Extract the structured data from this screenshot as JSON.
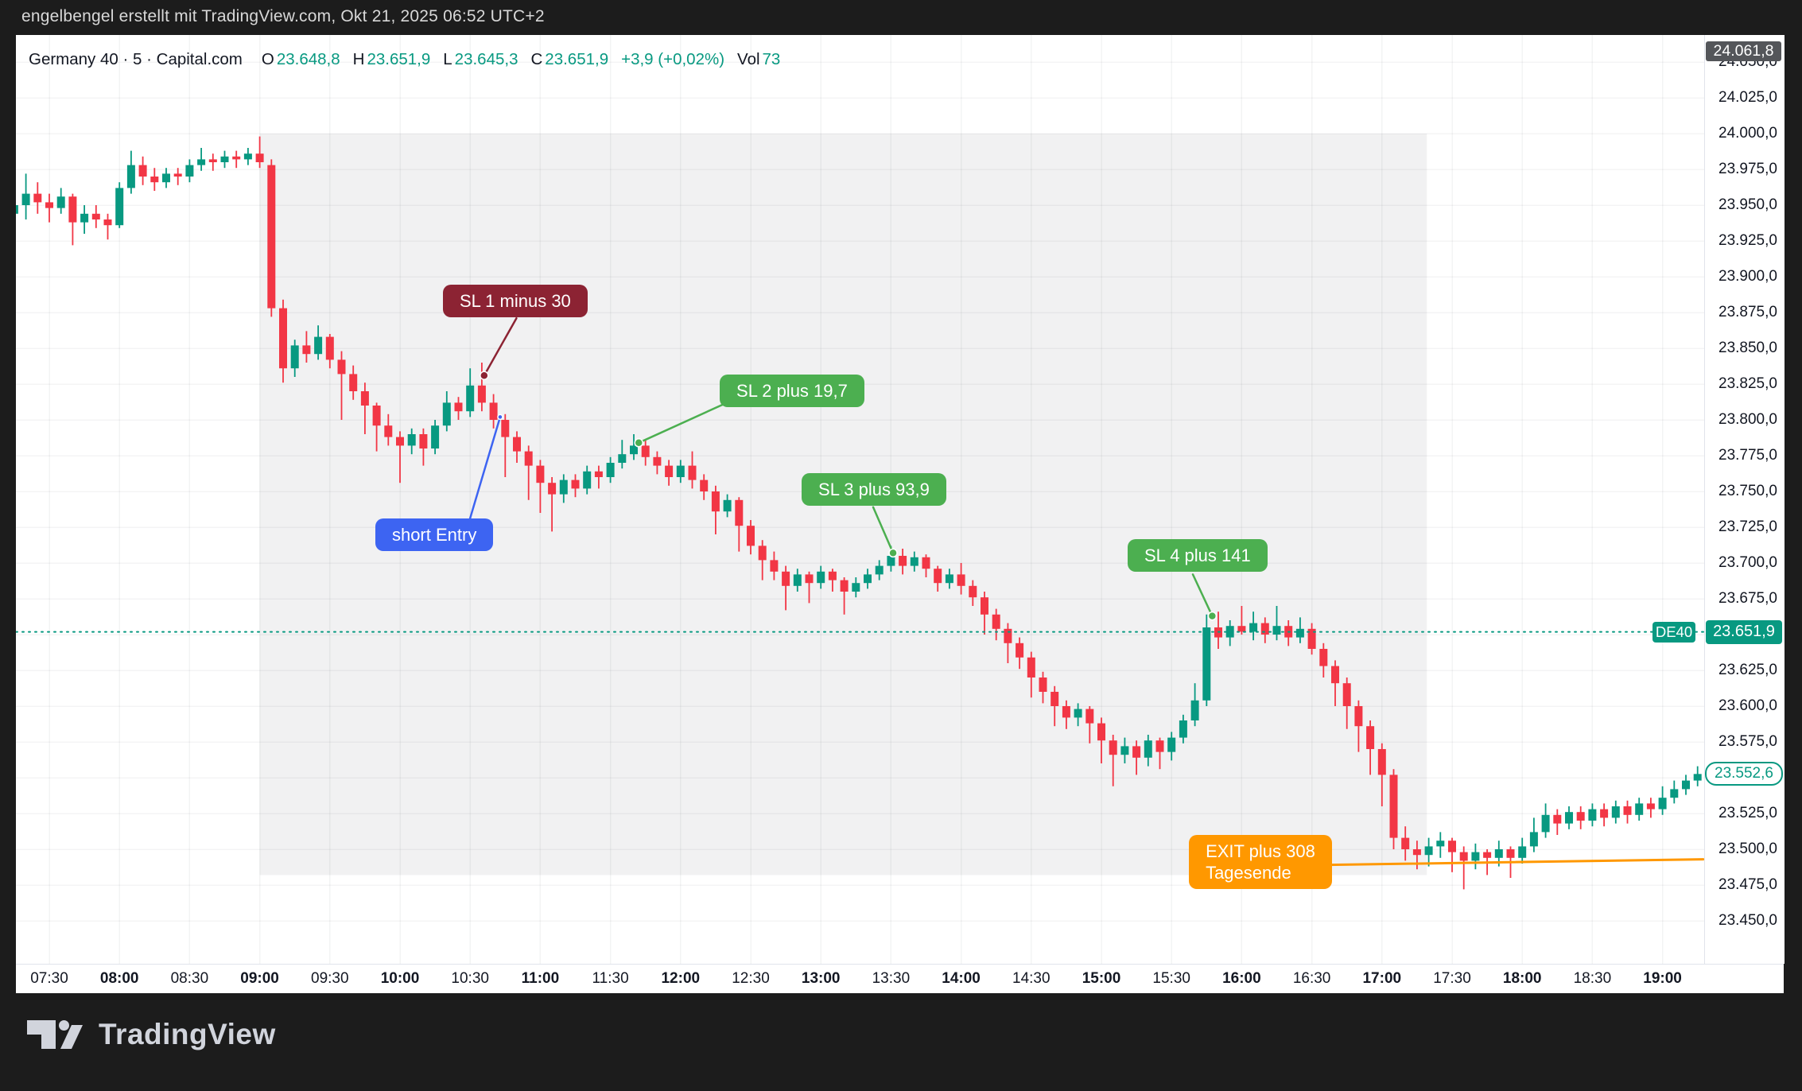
{
  "top_bar": {
    "attribution": "engelbengel erstellt mit TradingView.com, Okt 21, 2025 06:52 UTC+2"
  },
  "header": {
    "title": "Germany 40 · 5 · Capital.com",
    "open": {
      "label": "O",
      "value": "23.648,8"
    },
    "high": {
      "label": "H",
      "value": "23.651,9"
    },
    "low": {
      "label": "L",
      "value": "23.645,3"
    },
    "close": {
      "label": "C",
      "value": "23.651,9"
    },
    "change": "+3,9 (+0,02%)",
    "volume": {
      "label": "Vol",
      "value": "73"
    }
  },
  "watermark": {
    "logo_text": "TradingView"
  },
  "axis_badges": {
    "high": "24.061,8",
    "symbol": "DE40",
    "current_price": "23.651,9",
    "last_close": "23.552,6"
  },
  "colors": {
    "up": "#089981",
    "down": "#f23645",
    "session": "#f1f1f2",
    "grid": "#efeff1",
    "accent_teal": "#089981",
    "axis_text": "#131722",
    "annotation_red": "#8c2333",
    "annotation_green": "#4caf50",
    "annotation_blue": "#3d64f2",
    "annotation_orange": "#ff9800"
  },
  "chart_data": {
    "type": "candlestick",
    "symbol": "Germany 40",
    "ticker": "DE40",
    "interval": "5",
    "feed": "Capital.com",
    "t_start": 7.25,
    "step_minutes": 5,
    "y_axis": {
      "min": 23450,
      "max": 24050,
      "step": 25,
      "labels": [
        {
          "price": 24050,
          "label": "24.050,0"
        },
        {
          "price": 24025,
          "label": "24.025,0"
        },
        {
          "price": 24000,
          "label": "24.000,0"
        },
        {
          "price": 23975,
          "label": "23.975,0"
        },
        {
          "price": 23950,
          "label": "23.950,0"
        },
        {
          "price": 23925,
          "label": "23.925,0"
        },
        {
          "price": 23900,
          "label": "23.900,0"
        },
        {
          "price": 23875,
          "label": "23.875,0"
        },
        {
          "price": 23850,
          "label": "23.850,0"
        },
        {
          "price": 23825,
          "label": "23.825,0"
        },
        {
          "price": 23800,
          "label": "23.800,0"
        },
        {
          "price": 23775,
          "label": "23.775,0"
        },
        {
          "price": 23750,
          "label": "23.750,0"
        },
        {
          "price": 23725,
          "label": "23.725,0"
        },
        {
          "price": 23700,
          "label": "23.700,0"
        },
        {
          "price": 23675,
          "label": "23.675,0"
        },
        {
          "price": 23650,
          "label": "23.650,0"
        },
        {
          "price": 23625,
          "label": "23.625,0"
        },
        {
          "price": 23600,
          "label": "23.600,0"
        },
        {
          "price": 23575,
          "label": "23.575,0"
        },
        {
          "price": 23550,
          "label": "23.550,0"
        },
        {
          "price": 23525,
          "label": "23.525,0"
        },
        {
          "price": 23500,
          "label": "23.500,0"
        },
        {
          "price": 23475,
          "label": "23.475,0"
        },
        {
          "price": 23450,
          "label": "23.450,0"
        }
      ]
    },
    "x_axis": {
      "ticks": [
        {
          "t": 7.5,
          "label": "07:30",
          "bold": false
        },
        {
          "t": 8,
          "label": "08:00",
          "bold": true
        },
        {
          "t": 8.5,
          "label": "08:30",
          "bold": false
        },
        {
          "t": 9,
          "label": "09:00",
          "bold": true
        },
        {
          "t": 9.5,
          "label": "09:30",
          "bold": false
        },
        {
          "t": 10,
          "label": "10:00",
          "bold": true
        },
        {
          "t": 10.5,
          "label": "10:30",
          "bold": false
        },
        {
          "t": 11,
          "label": "11:00",
          "bold": true
        },
        {
          "t": 11.5,
          "label": "11:30",
          "bold": false
        },
        {
          "t": 12,
          "label": "12:00",
          "bold": true
        },
        {
          "t": 12.5,
          "label": "12:30",
          "bold": false
        },
        {
          "t": 13,
          "label": "13:00",
          "bold": true
        },
        {
          "t": 13.5,
          "label": "13:30",
          "bold": false
        },
        {
          "t": 14,
          "label": "14:00",
          "bold": true
        },
        {
          "t": 14.5,
          "label": "14:30",
          "bold": false
        },
        {
          "t": 15,
          "label": "15:00",
          "bold": true
        },
        {
          "t": 15.5,
          "label": "15:30",
          "bold": false
        },
        {
          "t": 16,
          "label": "16:00",
          "bold": true
        },
        {
          "t": 16.5,
          "label": "16:30",
          "bold": false
        },
        {
          "t": 17,
          "label": "17:00",
          "bold": true
        },
        {
          "t": 17.5,
          "label": "17:30",
          "bold": false
        },
        {
          "t": 18,
          "label": "18:00",
          "bold": true
        },
        {
          "t": 18.5,
          "label": "18:30",
          "bold": false
        },
        {
          "t": 19,
          "label": "19:00",
          "bold": true
        }
      ]
    },
    "session_highlight": {
      "t_from": 9.0,
      "t_to": 17.32,
      "price_top": 24000,
      "price_bottom": 23482
    },
    "current_price": {
      "symbol": "DE40",
      "display": "23.651,9",
      "price": 23651.9
    },
    "last_close": {
      "display": "23.552,6",
      "price": 23552.6
    },
    "high_badge": {
      "display": "24.061,8"
    },
    "annotations": [
      {
        "id": "sl1",
        "text": "SL 1 minus 30",
        "color": "#8c2333",
        "label_pos": [
          10.306,
          23894.4
        ],
        "line": [
          [
            10.6,
            23831
          ],
          [
            10.83,
            23871
          ]
        ],
        "dot": [
          10.6,
          23831
        ],
        "dot_r": 5,
        "width": 2.5
      },
      {
        "id": "short-entry",
        "text": "short Entry",
        "color": "#3d64f2",
        "label_pos": [
          9.824,
          23731.1
        ],
        "line": [
          [
            10.493,
            23729
          ],
          [
            10.714,
            23802
          ]
        ],
        "dot": [
          10.714,
          23802
        ],
        "dot_r": 3,
        "width": 2.5
      },
      {
        "id": "sl2",
        "text": "SL 2 plus 19,7",
        "color": "#4caf50",
        "label_pos": [
          12.279,
          23831.7
        ],
        "line": [
          [
            11.702,
            23784
          ],
          [
            12.308,
            23811
          ]
        ],
        "dot": [
          11.702,
          23784
        ],
        "dot_r": 5,
        "width": 2.5
      },
      {
        "id": "sl3",
        "text": "SL 3 plus 93,9",
        "color": "#4caf50",
        "label_pos": [
          12.863,
          23762.8
        ],
        "line": [
          [
            13.515,
            23707
          ],
          [
            13.373,
            23739
          ]
        ],
        "dot": [
          13.515,
          23707
        ],
        "dot_r": 5,
        "width": 2.5
      },
      {
        "id": "sl4",
        "text": "SL 4 plus 141",
        "color": "#4caf50",
        "label_pos": [
          15.187,
          23716.7
        ],
        "line": [
          [
            15.79,
            23663
          ],
          [
            15.652,
            23692
          ]
        ],
        "dot": [
          15.79,
          23663
        ],
        "dot_r": 5,
        "width": 2.5
      },
      {
        "id": "exit",
        "text": "EXIT plus 308\nTagesende",
        "color": "#ff9800",
        "label_pos": [
          15.624,
          23510.0
        ],
        "line": [
          [
            16.576,
            23489
          ],
          [
            19.29,
            23493
          ]
        ],
        "dot": null,
        "dot_r": 0,
        "width": 3
      }
    ],
    "candles": [
      [
        23944,
        23960,
        23938,
        23950
      ],
      [
        23950,
        23972,
        23940,
        23958
      ],
      [
        23958,
        23966,
        23944,
        23952
      ],
      [
        23952,
        23958,
        23938,
        23948
      ],
      [
        23948,
        23962,
        23944,
        23956
      ],
      [
        23956,
        23958,
        23922,
        23938
      ],
      [
        23938,
        23950,
        23930,
        23944
      ],
      [
        23944,
        23950,
        23934,
        23940
      ],
      [
        23940,
        23944,
        23926,
        23936
      ],
      [
        23936,
        23966,
        23934,
        23962
      ],
      [
        23962,
        23988,
        23958,
        23978
      ],
      [
        23978,
        23984,
        23964,
        23970
      ],
      [
        23970,
        23976,
        23960,
        23966
      ],
      [
        23966,
        23976,
        23962,
        23972
      ],
      [
        23972,
        23976,
        23964,
        23970
      ],
      [
        23970,
        23982,
        23966,
        23978
      ],
      [
        23978,
        23990,
        23974,
        23982
      ],
      [
        23982,
        23986,
        23974,
        23980
      ],
      [
        23980,
        23988,
        23976,
        23984
      ],
      [
        23984,
        23988,
        23976,
        23982
      ],
      [
        23982,
        23990,
        23978,
        23986
      ],
      [
        23986,
        23998,
        23976,
        23980
      ],
      [
        23978,
        23982,
        23872,
        23878
      ],
      [
        23878,
        23884,
        23826,
        23836
      ],
      [
        23836,
        23856,
        23830,
        23852
      ],
      [
        23852,
        23862,
        23840,
        23846
      ],
      [
        23846,
        23866,
        23842,
        23858
      ],
      [
        23858,
        23860,
        23836,
        23842
      ],
      [
        23842,
        23848,
        23800,
        23832
      ],
      [
        23832,
        23838,
        23814,
        23820
      ],
      [
        23820,
        23826,
        23790,
        23810
      ],
      [
        23810,
        23812,
        23778,
        23796
      ],
      [
        23796,
        23804,
        23782,
        23788
      ],
      [
        23788,
        23792,
        23756,
        23782
      ],
      [
        23782,
        23794,
        23776,
        23790
      ],
      [
        23790,
        23794,
        23768,
        23780
      ],
      [
        23780,
        23800,
        23776,
        23796
      ],
      [
        23796,
        23820,
        23792,
        23812
      ],
      [
        23812,
        23816,
        23800,
        23806
      ],
      [
        23806,
        23836,
        23802,
        23824
      ],
      [
        23824,
        23840,
        23806,
        23812
      ],
      [
        23812,
        23818,
        23794,
        23800
      ],
      [
        23800,
        23804,
        23760,
        23788
      ],
      [
        23788,
        23792,
        23770,
        23778
      ],
      [
        23778,
        23782,
        23744,
        23768
      ],
      [
        23768,
        23772,
        23735,
        23756
      ],
      [
        23756,
        23760,
        23722,
        23748
      ],
      [
        23748,
        23762,
        23742,
        23758
      ],
      [
        23758,
        23762,
        23746,
        23752
      ],
      [
        23752,
        23768,
        23748,
        23764
      ],
      [
        23764,
        23768,
        23752,
        23760
      ],
      [
        23760,
        23774,
        23756,
        23770
      ],
      [
        23770,
        23786,
        23766,
        23776
      ],
      [
        23776,
        23790,
        23772,
        23782
      ],
      [
        23782,
        23786,
        23768,
        23774
      ],
      [
        23774,
        23778,
        23762,
        23768
      ],
      [
        23768,
        23772,
        23754,
        23760
      ],
      [
        23760,
        23772,
        23756,
        23768
      ],
      [
        23768,
        23778,
        23752,
        23758
      ],
      [
        23758,
        23762,
        23744,
        23750
      ],
      [
        23750,
        23754,
        23720,
        23736
      ],
      [
        23736,
        23748,
        23732,
        23744
      ],
      [
        23744,
        23746,
        23708,
        23726
      ],
      [
        23726,
        23730,
        23706,
        23712
      ],
      [
        23712,
        23716,
        23688,
        23702
      ],
      [
        23702,
        23708,
        23688,
        23694
      ],
      [
        23694,
        23698,
        23667,
        23684
      ],
      [
        23684,
        23696,
        23680,
        23692
      ],
      [
        23692,
        23694,
        23672,
        23686
      ],
      [
        23686,
        23698,
        23682,
        23694
      ],
      [
        23694,
        23696,
        23680,
        23688
      ],
      [
        23688,
        23690,
        23664,
        23680
      ],
      [
        23680,
        23690,
        23676,
        23686
      ],
      [
        23686,
        23696,
        23682,
        23692
      ],
      [
        23692,
        23702,
        23688,
        23698
      ],
      [
        23698,
        23712,
        23694,
        23705
      ],
      [
        23705,
        23710,
        23692,
        23698
      ],
      [
        23698,
        23708,
        23694,
        23704
      ],
      [
        23704,
        23706,
        23690,
        23696
      ],
      [
        23696,
        23698,
        23680,
        23686
      ],
      [
        23686,
        23696,
        23682,
        23692
      ],
      [
        23692,
        23700,
        23678,
        23684
      ],
      [
        23684,
        23688,
        23670,
        23676
      ],
      [
        23676,
        23680,
        23650,
        23664
      ],
      [
        23664,
        23668,
        23646,
        23654
      ],
      [
        23654,
        23658,
        23630,
        23644
      ],
      [
        23644,
        23648,
        23626,
        23634
      ],
      [
        23634,
        23638,
        23606,
        23620
      ],
      [
        23620,
        23624,
        23602,
        23610
      ],
      [
        23610,
        23614,
        23586,
        23600
      ],
      [
        23600,
        23604,
        23584,
        23592
      ],
      [
        23592,
        23602,
        23586,
        23598
      ],
      [
        23598,
        23600,
        23574,
        23588
      ],
      [
        23588,
        23592,
        23560,
        23576
      ],
      [
        23576,
        23580,
        23544,
        23566
      ],
      [
        23566,
        23578,
        23560,
        23572
      ],
      [
        23572,
        23576,
        23552,
        23564
      ],
      [
        23564,
        23580,
        23558,
        23576
      ],
      [
        23576,
        23578,
        23556,
        23568
      ],
      [
        23568,
        23582,
        23562,
        23578
      ],
      [
        23578,
        23594,
        23574,
        23590
      ],
      [
        23590,
        23616,
        23586,
        23604
      ],
      [
        23604,
        23664,
        23600,
        23655
      ],
      [
        23655,
        23666,
        23640,
        23648
      ],
      [
        23648,
        23660,
        23642,
        23656
      ],
      [
        23656,
        23670,
        23650,
        23652
      ],
      [
        23652,
        23666,
        23646,
        23658
      ],
      [
        23658,
        23662,
        23644,
        23650
      ],
      [
        23650,
        23670,
        23646,
        23656
      ],
      [
        23656,
        23660,
        23642,
        23648
      ],
      [
        23648,
        23662,
        23644,
        23654
      ],
      [
        23654,
        23658,
        23636,
        23640
      ],
      [
        23640,
        23644,
        23620,
        23628
      ],
      [
        23628,
        23632,
        23600,
        23616
      ],
      [
        23616,
        23620,
        23584,
        23600
      ],
      [
        23600,
        23604,
        23568,
        23586
      ],
      [
        23586,
        23590,
        23552,
        23570
      ],
      [
        23570,
        23574,
        23530,
        23552
      ],
      [
        23552,
        23556,
        23500,
        23508
      ],
      [
        23508,
        23516,
        23492,
        23500
      ],
      [
        23500,
        23506,
        23486,
        23496
      ],
      [
        23496,
        23508,
        23488,
        23502
      ],
      [
        23502,
        23512,
        23494,
        23506
      ],
      [
        23506,
        23508,
        23484,
        23498
      ],
      [
        23498,
        23502,
        23472,
        23492
      ],
      [
        23492,
        23504,
        23486,
        23498
      ],
      [
        23498,
        23500,
        23482,
        23494
      ],
      [
        23494,
        23506,
        23488,
        23500
      ],
      [
        23500,
        23502,
        23480,
        23494
      ],
      [
        23494,
        23508,
        23490,
        23502
      ],
      [
        23502,
        23522,
        23498,
        23512
      ],
      [
        23512,
        23532,
        23508,
        23524
      ],
      [
        23524,
        23528,
        23510,
        23518
      ],
      [
        23518,
        23530,
        23514,
        23526
      ],
      [
        23526,
        23530,
        23514,
        23520
      ],
      [
        23520,
        23532,
        23516,
        23528
      ],
      [
        23528,
        23532,
        23516,
        23522
      ],
      [
        23522,
        23534,
        23518,
        23530
      ],
      [
        23530,
        23534,
        23518,
        23524
      ],
      [
        23524,
        23536,
        23520,
        23532
      ],
      [
        23532,
        23536,
        23522,
        23528
      ],
      [
        23528,
        23544,
        23524,
        23536
      ],
      [
        23536,
        23548,
        23532,
        23542
      ],
      [
        23542,
        23552,
        23538,
        23548
      ],
      [
        23548,
        23558,
        23544,
        23552.6
      ]
    ]
  }
}
